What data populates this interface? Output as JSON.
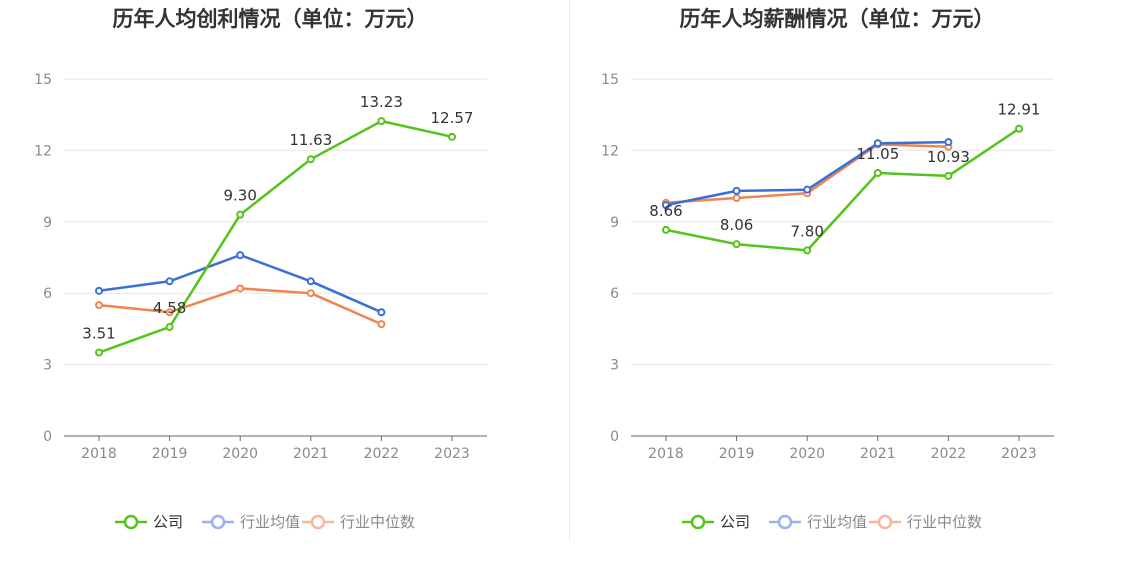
{
  "colors": {
    "company": "#52c41a",
    "industry_avg": "#3a6fd8",
    "industry_median": "#ee8550",
    "legend_avg_faded": "#97b4ee",
    "legend_median_faded": "#f7b79a",
    "axis": "#666666",
    "grid": "#e6e6e6",
    "tick_text": "#8a8a8a"
  },
  "legend": {
    "company": "公司",
    "industry_avg": "行业均值",
    "industry_median": "行业中位数"
  },
  "chart_data": [
    {
      "type": "line",
      "title": "历年人均创利情况（单位：万元）",
      "categories": [
        "2018",
        "2019",
        "2020",
        "2021",
        "2022",
        "2023"
      ],
      "ylim": [
        0,
        15
      ],
      "yticks": [
        0,
        3,
        6,
        9,
        12,
        15
      ],
      "grid": true,
      "legend_position": "bottom",
      "series": [
        {
          "name": "公司",
          "key": "company",
          "values": [
            3.51,
            4.58,
            9.3,
            11.63,
            13.23,
            12.57
          ],
          "labels": [
            "3.51",
            "4.58",
            "9.30",
            "11.63",
            "13.23",
            "12.57"
          ]
        },
        {
          "name": "行业均值",
          "key": "industry_avg",
          "values": [
            6.1,
            6.5,
            7.6,
            6.5,
            5.2,
            null
          ]
        },
        {
          "name": "行业中位数",
          "key": "industry_median",
          "values": [
            5.5,
            5.2,
            6.2,
            6.0,
            4.7,
            null
          ]
        }
      ]
    },
    {
      "type": "line",
      "title": "历年人均薪酬情况（单位：万元）",
      "categories": [
        "2018",
        "2019",
        "2020",
        "2021",
        "2022",
        "2023"
      ],
      "ylim": [
        0,
        15
      ],
      "yticks": [
        0,
        3,
        6,
        9,
        12,
        15
      ],
      "grid": true,
      "legend_position": "bottom",
      "series": [
        {
          "name": "公司",
          "key": "company",
          "values": [
            8.66,
            8.06,
            7.8,
            11.05,
            10.93,
            12.91
          ],
          "labels": [
            "8.66",
            "8.06",
            "7.80",
            "11.05",
            "10.93",
            "12.91"
          ]
        },
        {
          "name": "行业均值",
          "key": "industry_avg",
          "values": [
            9.7,
            10.3,
            10.35,
            12.3,
            12.35,
            null
          ]
        },
        {
          "name": "行业中位数",
          "key": "industry_median",
          "values": [
            9.8,
            10.0,
            10.2,
            12.25,
            12.15,
            null
          ]
        }
      ]
    }
  ]
}
